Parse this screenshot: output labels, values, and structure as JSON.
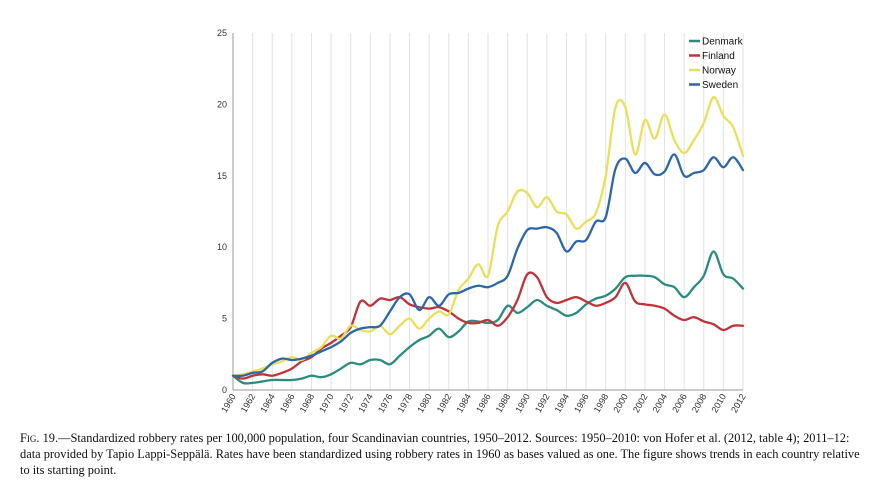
{
  "chart_data": {
    "type": "line",
    "x": [
      1960,
      1961,
      1962,
      1963,
      1964,
      1965,
      1966,
      1967,
      1968,
      1969,
      1970,
      1971,
      1972,
      1973,
      1974,
      1975,
      1976,
      1977,
      1978,
      1979,
      1980,
      1981,
      1982,
      1983,
      1984,
      1985,
      1986,
      1987,
      1988,
      1989,
      1990,
      1991,
      1992,
      1993,
      1994,
      1995,
      1996,
      1997,
      1998,
      1999,
      2000,
      2001,
      2002,
      2003,
      2004,
      2005,
      2006,
      2007,
      2008,
      2009,
      2010,
      2011,
      2012
    ],
    "x_tick_labels": [
      "1960",
      "1962",
      "1964",
      "1966",
      "1968",
      "1970",
      "1972",
      "1974",
      "1976",
      "1978",
      "1980",
      "1982",
      "1984",
      "1986",
      "1988",
      "1990",
      "1992",
      "1994",
      "1996",
      "1998",
      "2000",
      "2002",
      "2004",
      "2006",
      "2008",
      "2010",
      "2012"
    ],
    "y_tick_labels": [
      "0",
      "5",
      "10",
      "15",
      "20",
      "25"
    ],
    "ylim": [
      0,
      25
    ],
    "grid": "vertical",
    "legend_position": "top-right",
    "series": [
      {
        "name": "Denmark",
        "color": "#2a8c7e",
        "values": [
          1.0,
          0.5,
          0.5,
          0.6,
          0.7,
          0.7,
          0.7,
          0.8,
          1.0,
          0.9,
          1.1,
          1.5,
          1.9,
          1.8,
          2.1,
          2.1,
          1.8,
          2.4,
          3.0,
          3.5,
          3.8,
          4.3,
          3.7,
          4.1,
          4.8,
          4.8,
          4.7,
          4.9,
          5.9,
          5.4,
          5.8,
          6.3,
          5.9,
          5.6,
          5.2,
          5.4,
          6.0,
          6.4,
          6.6,
          7.1,
          7.9,
          8.0,
          8.0,
          7.9,
          7.4,
          7.2,
          6.5,
          7.2,
          8.0,
          9.7,
          8.1,
          7.8,
          7.1
        ]
      },
      {
        "name": "Finland",
        "color": "#c0333a",
        "values": [
          1.0,
          0.8,
          1.0,
          1.1,
          1.0,
          1.2,
          1.5,
          2.0,
          2.3,
          2.9,
          3.3,
          3.8,
          4.4,
          6.2,
          5.9,
          6.4,
          6.3,
          6.5,
          6.0,
          5.8,
          5.7,
          5.8,
          5.5,
          5.0,
          4.7,
          4.7,
          4.9,
          4.5,
          5.1,
          6.3,
          8.1,
          7.9,
          6.5,
          6.1,
          6.3,
          6.5,
          6.2,
          5.9,
          6.1,
          6.5,
          7.5,
          6.2,
          6.0,
          5.9,
          5.7,
          5.2,
          4.9,
          5.1,
          4.8,
          4.6,
          4.2,
          4.5,
          4.5
        ]
      },
      {
        "name": "Norway",
        "color": "#e8e05a",
        "values": [
          1.0,
          1.1,
          1.3,
          1.5,
          1.8,
          2.0,
          2.3,
          2.1,
          2.6,
          3.0,
          3.8,
          3.6,
          4.5,
          4.2,
          4.1,
          4.5,
          3.9,
          4.5,
          5.0,
          4.3,
          5.0,
          5.5,
          5.3,
          7.0,
          7.8,
          8.8,
          8.0,
          11.5,
          12.5,
          13.9,
          13.8,
          12.8,
          13.5,
          12.5,
          12.3,
          11.3,
          11.8,
          12.4,
          15.0,
          19.8,
          19.8,
          16.5,
          18.9,
          17.6,
          19.3,
          17.5,
          16.6,
          17.5,
          18.7,
          20.5,
          19.2,
          18.4,
          16.4
        ]
      },
      {
        "name": "Sweden",
        "color": "#2e67a8",
        "values": [
          1.0,
          1.0,
          1.2,
          1.3,
          1.9,
          2.2,
          2.1,
          2.2,
          2.4,
          2.7,
          3.0,
          3.4,
          4.0,
          4.3,
          4.4,
          4.5,
          5.5,
          6.5,
          6.7,
          5.6,
          6.5,
          5.9,
          6.7,
          6.8,
          7.1,
          7.3,
          7.2,
          7.5,
          8.0,
          9.9,
          11.2,
          11.3,
          11.4,
          11.0,
          9.7,
          10.4,
          10.5,
          11.8,
          12.1,
          15.5,
          16.2,
          15.2,
          15.9,
          15.1,
          15.3,
          16.5,
          15.0,
          15.2,
          15.4,
          16.3,
          15.6,
          16.3,
          15.4
        ]
      }
    ]
  },
  "caption": {
    "fig_label": "Fig. 19.",
    "text": "—Standardized robbery rates per 100,000 population, four Scandinavian countries, 1950–2012. Sources: 1950–2010: von Hofer et al. (2012, table 4); 2011–12: data provided by Tapio Lappi-Seppälä. Rates have been standardized using robbery rates in 1960 as bases valued as one. The figure shows trends in each country relative to its starting point."
  }
}
